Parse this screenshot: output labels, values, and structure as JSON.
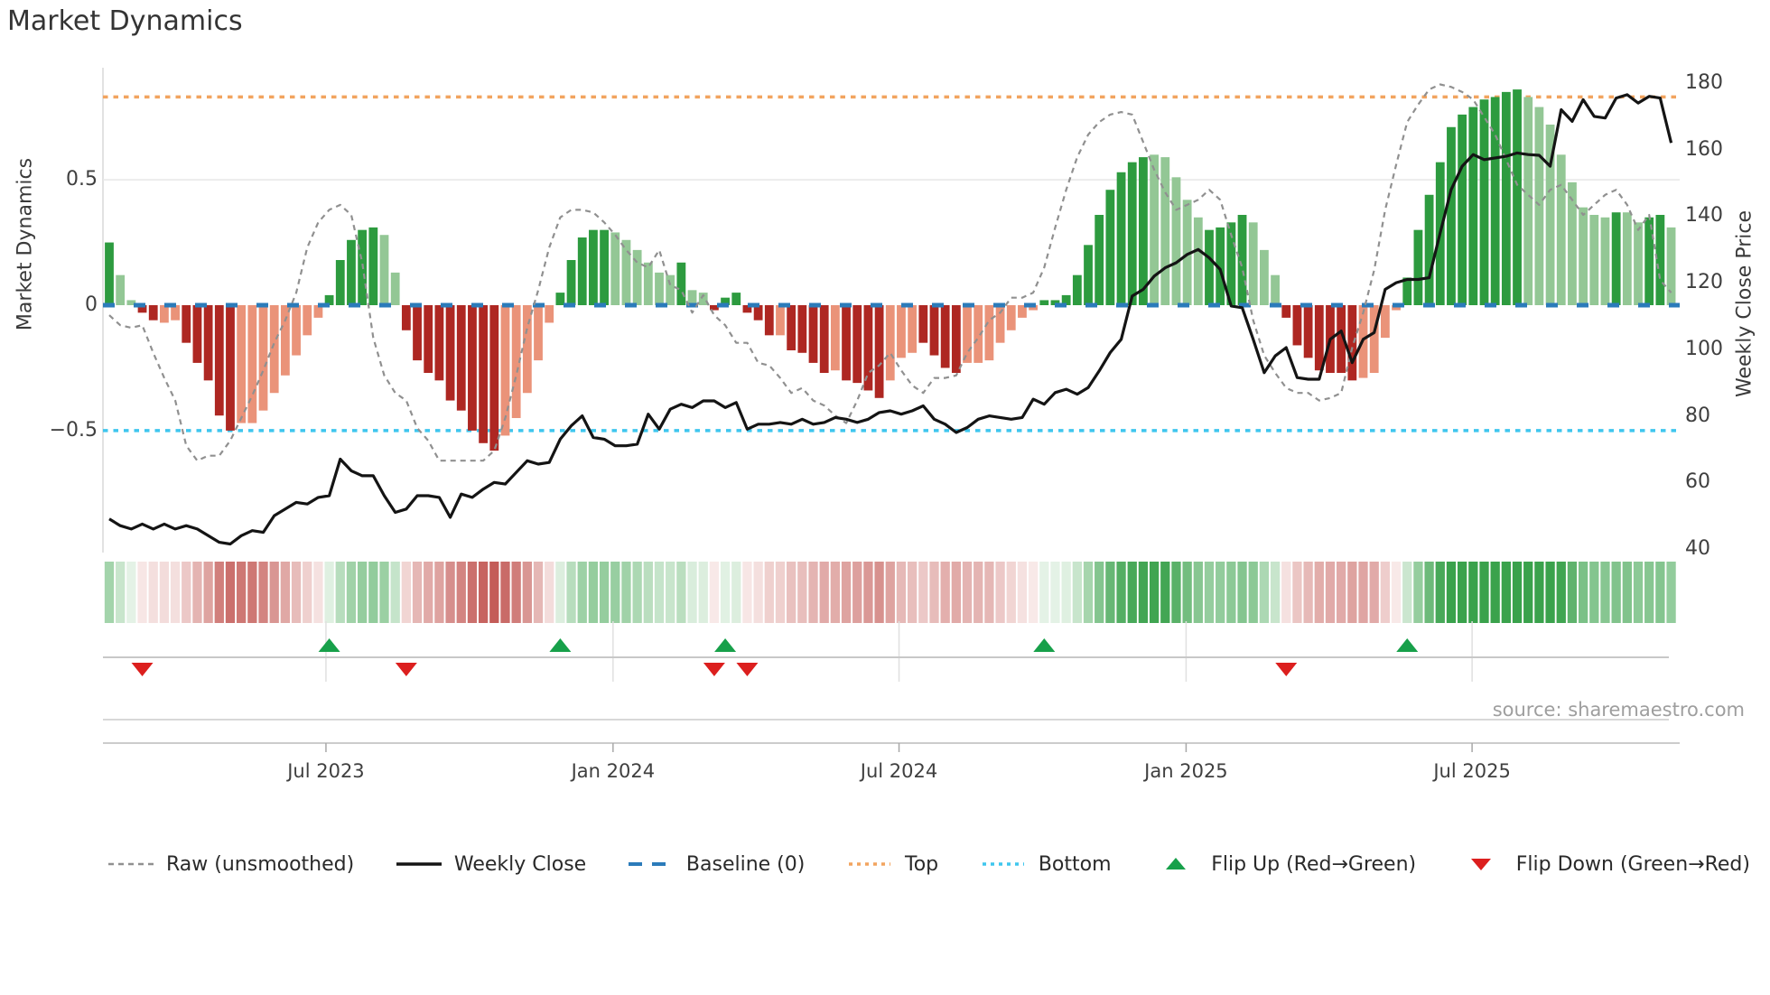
{
  "title": "Market Dynamics",
  "source": "source: sharemaestro.com",
  "left_axis": {
    "title": "Market Dynamics",
    "ticks": [
      "0.5",
      "0",
      "−0.5"
    ],
    "tick_values": [
      0.5,
      0,
      -0.5
    ]
  },
  "right_axis": {
    "title": "Weekly Close Price",
    "ticks": [
      180,
      160,
      140,
      120,
      100,
      80,
      60,
      40
    ]
  },
  "colors": {
    "bar_dark_green": "#2d9b3f",
    "bar_light_green": "#93c795",
    "bar_dark_red": "#ae2722",
    "bar_light_red": "#ea9379",
    "raw_line": "#909090",
    "price_line": "#141414",
    "baseline": "#2b7bba",
    "top_line": "#f2a45f",
    "bottom_line": "#3fc6ee",
    "flip_up": "#17a04a",
    "flip_down": "#dc1f1e",
    "grid": "#e7e7e7",
    "spine": "#d9d9d9",
    "heat_green_max": "#3aa24c",
    "heat_red_max": "#c0524e"
  },
  "legend": [
    {
      "label": "Raw (unsmoothed)",
      "type": "dashed-line",
      "color": "#909090"
    },
    {
      "label": "Weekly Close",
      "type": "solid-line",
      "color": "#141414"
    },
    {
      "label": "Baseline (0)",
      "type": "long-dash",
      "color": "#2b7bba"
    },
    {
      "label": "Top",
      "type": "dotted-line",
      "color": "#f2a45f"
    },
    {
      "label": "Bottom",
      "type": "dotted-line",
      "color": "#3fc6ee"
    },
    {
      "label": "Flip Up (Red→Green)",
      "type": "triangle-up",
      "color": "#17a04a"
    },
    {
      "label": "Flip Down (Green→Red)",
      "type": "triangle-down",
      "color": "#dc1f1e"
    }
  ],
  "chart_data": {
    "type": "combo: weekly bar oscillator + dashed raw line + price line + heatmap strip + flip markers",
    "baseline": 0,
    "top": 0.83,
    "bottom": -0.5,
    "osc_axis_ticks": [
      0.5,
      0,
      -0.5
    ],
    "price_axis_ticks": [
      180,
      160,
      140,
      120,
      100,
      80,
      60,
      40
    ],
    "x_ticks": [
      {
        "label": "Jul 2023",
        "week": 19.7
      },
      {
        "label": "Jan 2024",
        "week": 45.8
      },
      {
        "label": "Jul 2024",
        "week": 71.8
      },
      {
        "label": "Jan 2025",
        "week": 97.9
      },
      {
        "label": "Jul 2025",
        "week": 123.9
      }
    ],
    "flip_up_weeks": [
      20,
      41,
      56,
      85,
      118
    ],
    "flip_down_weeks": [
      3,
      27,
      55,
      58,
      107
    ],
    "series": [
      {
        "name": "Market Dynamics oscillator",
        "type": "bar",
        "shades": "DLLDDLLDDDDDLLLLLLLLDDDDDLLDDDDDDDDDLLLLLDDDDDLLLLLLDLLDDDDDDLDDDDLDDDDLLLDDDDLLLLLLLDDDDDDDDDDLLLLLDDDDLLLDDDDDDDLLLLDDDDDDDDDDDLLLLLLLLDLLDDL",
        "values": [
          0.25,
          0.12,
          0.02,
          -0.03,
          -0.06,
          -0.07,
          -0.06,
          -0.15,
          -0.23,
          -0.3,
          -0.44,
          -0.5,
          -0.47,
          -0.47,
          -0.42,
          -0.35,
          -0.28,
          -0.2,
          -0.12,
          -0.05,
          0.04,
          0.18,
          0.26,
          0.3,
          0.31,
          0.28,
          0.13,
          -0.1,
          -0.22,
          -0.27,
          -0.3,
          -0.38,
          -0.42,
          -0.5,
          -0.55,
          -0.58,
          -0.52,
          -0.45,
          -0.35,
          -0.22,
          -0.07,
          0.05,
          0.18,
          0.27,
          0.3,
          0.3,
          0.29,
          0.26,
          0.22,
          0.17,
          0.13,
          0.12,
          0.17,
          0.06,
          0.05,
          -0.02,
          0.03,
          0.05,
          -0.03,
          -0.06,
          -0.12,
          -0.12,
          -0.18,
          -0.19,
          -0.23,
          -0.27,
          -0.26,
          -0.3,
          -0.31,
          -0.34,
          -0.37,
          -0.3,
          -0.21,
          -0.19,
          -0.15,
          -0.2,
          -0.25,
          -0.27,
          -0.23,
          -0.23,
          -0.22,
          -0.15,
          -0.1,
          -0.05,
          -0.02,
          0.02,
          0.02,
          0.04,
          0.12,
          0.24,
          0.36,
          0.46,
          0.53,
          0.57,
          0.59,
          0.6,
          0.59,
          0.51,
          0.42,
          0.35,
          0.3,
          0.31,
          0.33,
          0.36,
          0.33,
          0.22,
          0.12,
          -0.05,
          -0.16,
          -0.21,
          -0.26,
          -0.27,
          -0.27,
          -0.3,
          -0.29,
          -0.27,
          -0.13,
          -0.02,
          0.11,
          0.3,
          0.44,
          0.57,
          0.71,
          0.76,
          0.79,
          0.82,
          0.83,
          0.85,
          0.86,
          0.83,
          0.79,
          0.72,
          0.6,
          0.49,
          0.39,
          0.36,
          0.35,
          0.37,
          0.37,
          0.33,
          0.35,
          0.36,
          0.31
        ]
      },
      {
        "name": "Raw (unsmoothed)",
        "type": "line",
        "values": [
          -0.04,
          -0.08,
          -0.09,
          -0.08,
          -0.19,
          -0.29,
          -0.38,
          -0.56,
          -0.62,
          -0.6,
          -0.6,
          -0.54,
          -0.45,
          -0.36,
          -0.26,
          -0.15,
          -0.06,
          0.05,
          0.23,
          0.33,
          0.38,
          0.4,
          0.36,
          0.17,
          -0.13,
          -0.28,
          -0.35,
          -0.38,
          -0.49,
          -0.54,
          -0.62,
          -0.62,
          -0.62,
          -0.62,
          -0.62,
          -0.58,
          -0.45,
          -0.28,
          -0.09,
          0.06,
          0.23,
          0.35,
          0.38,
          0.38,
          0.37,
          0.33,
          0.28,
          0.22,
          0.17,
          0.15,
          0.22,
          0.08,
          0.06,
          -0.03,
          0.04,
          -0.04,
          -0.08,
          -0.15,
          -0.15,
          -0.23,
          -0.24,
          -0.29,
          -0.35,
          -0.33,
          -0.38,
          -0.4,
          -0.44,
          -0.47,
          -0.38,
          -0.27,
          -0.24,
          -0.19,
          -0.26,
          -0.32,
          -0.35,
          -0.29,
          -0.29,
          -0.28,
          -0.19,
          -0.13,
          -0.06,
          -0.03,
          0.03,
          0.03,
          0.05,
          0.15,
          0.31,
          0.46,
          0.59,
          0.68,
          0.73,
          0.76,
          0.77,
          0.76,
          0.65,
          0.54,
          0.45,
          0.38,
          0.4,
          0.42,
          0.46,
          0.42,
          0.28,
          0.15,
          -0.06,
          -0.2,
          -0.27,
          -0.33,
          -0.35,
          -0.35,
          -0.38,
          -0.37,
          -0.35,
          -0.17,
          -0.03,
          0.14,
          0.38,
          0.56,
          0.73,
          0.8,
          0.86,
          0.88,
          0.87,
          0.85,
          0.82,
          0.75,
          0.68,
          0.58,
          0.48,
          0.44,
          0.4,
          0.46,
          0.48,
          0.42,
          0.36,
          0.4,
          0.44,
          0.46,
          0.4,
          0.3,
          0.36,
          0.1,
          0.05
        ]
      },
      {
        "name": "Weekly Close",
        "type": "line",
        "axis": "price",
        "values": [
          49,
          47,
          46,
          47.5,
          46,
          47.5,
          46,
          47,
          46,
          44,
          42,
          41.5,
          44,
          45.5,
          45,
          50,
          52,
          54,
          53.5,
          55.5,
          56,
          67,
          63.5,
          62,
          62,
          56,
          51,
          52,
          56,
          56,
          55.5,
          49.5,
          56.5,
          55.5,
          58,
          60,
          59.5,
          63,
          66.5,
          65.5,
          66,
          73,
          77,
          80,
          73.5,
          73,
          71,
          71,
          71.5,
          80.5,
          76,
          82,
          83.5,
          82.5,
          84.5,
          84.5,
          82.5,
          84,
          76,
          77.5,
          77.5,
          78,
          77.5,
          79,
          77.5,
          78,
          79.5,
          79,
          78,
          79,
          81,
          81.5,
          80.5,
          81.5,
          83,
          79,
          77.5,
          75,
          76.5,
          79,
          80,
          79.5,
          79,
          79.5,
          85,
          83.5,
          87,
          88,
          86.5,
          88.5,
          93.5,
          99,
          103,
          116,
          118,
          122,
          124.5,
          126,
          128.5,
          130,
          127.5,
          124,
          113,
          112.5,
          103,
          93,
          98,
          100.5,
          91.5,
          91,
          91,
          103,
          105.5,
          96,
          103,
          105,
          118,
          120,
          121,
          121,
          121.5,
          135,
          148,
          155,
          158.5,
          157,
          157.5,
          158,
          159,
          158.5,
          158.3,
          155,
          172,
          168.5,
          175,
          170,
          169.5,
          175.5,
          176.5,
          174,
          176,
          175.5,
          162
        ]
      }
    ],
    "heatmap": "one cell per week; hue = oscillator sign (green/red), intensity = |oscillator|"
  }
}
